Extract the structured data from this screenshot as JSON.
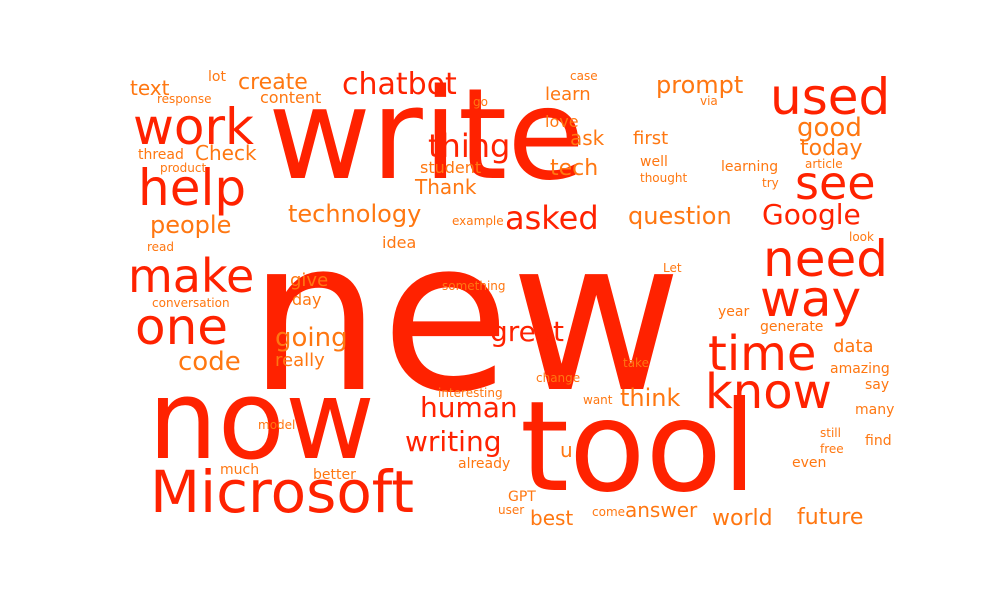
{
  "colors": {
    "primary": "#ff2200",
    "secondary": "#ff7711",
    "background": "#ffffff"
  },
  "words": [
    "new",
    "write",
    "now",
    "tool",
    "Microsoft",
    "used",
    "help",
    "work",
    "see",
    "need",
    "way",
    "one",
    "make",
    "time",
    "know",
    "chatbot",
    "Google",
    "thing",
    "asked",
    "writing",
    "human",
    "great",
    "prompt",
    "good",
    "technology",
    "code",
    "going",
    "people",
    "question",
    "think",
    "answer",
    "world",
    "future",
    "best",
    "today",
    "create",
    "text",
    "content",
    "learn",
    "ask",
    "tech",
    "Thank",
    "first",
    "love",
    "Check",
    "idea",
    "give",
    "day",
    "really",
    "data",
    "student",
    "thread",
    "response",
    "lot",
    "case",
    "go",
    "via",
    "well",
    "learning",
    "article",
    "thought",
    "try",
    "product",
    "example",
    "something",
    "conversation",
    "read",
    "look",
    "Let",
    "year",
    "generate",
    "amazing",
    "say",
    "change",
    "take",
    "interesting",
    "want",
    "model",
    "still",
    "free",
    "find",
    "many",
    "much",
    "better",
    "already",
    "even",
    "GPT",
    "user",
    "come",
    "u"
  ]
}
